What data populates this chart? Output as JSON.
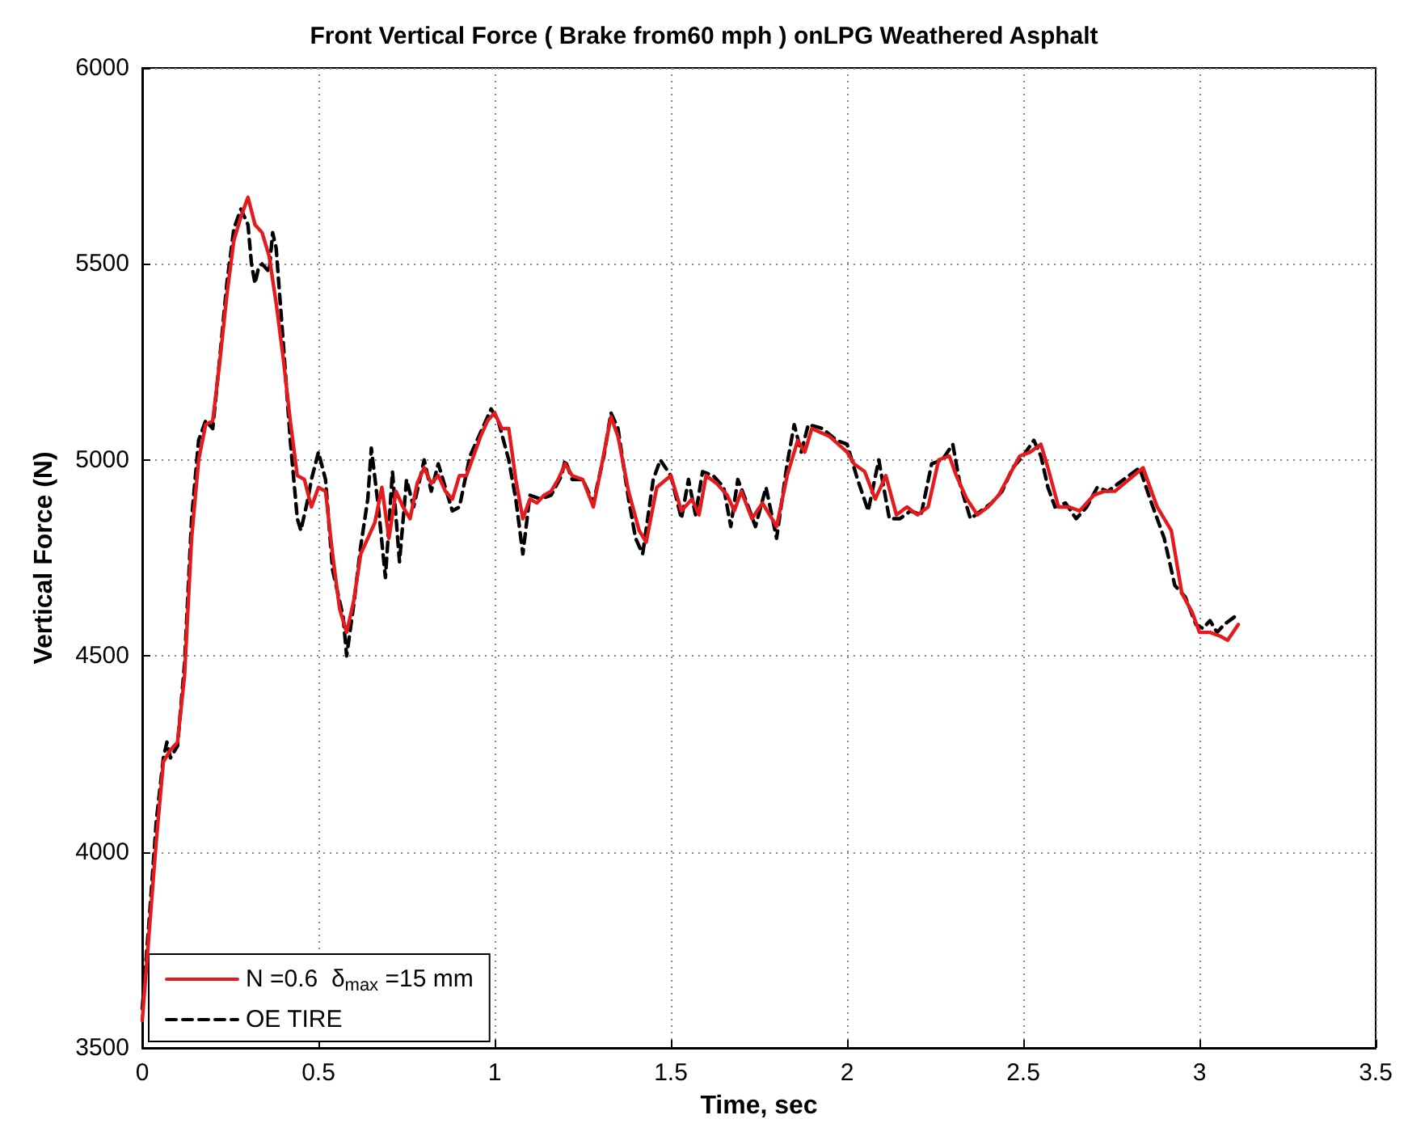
{
  "chart_data": {
    "type": "line",
    "title": "Front Vertical Force ( Brake from60 mph ) onLPG Weathered Asphalt",
    "xlabel": "Time, sec",
    "ylabel": "Vertical Force (N)",
    "xlim": [
      0,
      3.5
    ],
    "xticks": [
      0,
      0.5,
      1,
      1.5,
      2,
      2.5,
      3,
      3.5
    ],
    "ylim": [
      3500,
      6000
    ],
    "yticks": [
      3500,
      4000,
      4500,
      5000,
      5500,
      6000
    ],
    "grid": true,
    "legend": "bottom left",
    "marker": "none",
    "series": [
      {
        "name": "N =0.6  δ$_{max}$ =15 mm",
        "color": "#e41a1c",
        "line_style": "solid",
        "x": [
          0,
          0.02,
          0.04,
          0.06,
          0.08,
          0.1,
          0.12,
          0.14,
          0.16,
          0.18,
          0.2,
          0.22,
          0.24,
          0.26,
          0.28,
          0.3,
          0.32,
          0.34,
          0.36,
          0.38,
          0.4,
          0.42,
          0.44,
          0.46,
          0.48,
          0.5,
          0.52,
          0.54,
          0.56,
          0.58,
          0.6,
          0.62,
          0.64,
          0.66,
          0.68,
          0.7,
          0.72,
          0.74,
          0.76,
          0.78,
          0.8,
          0.82,
          0.84,
          0.86,
          0.88,
          0.9,
          0.92,
          0.94,
          0.96,
          0.98,
          1.0,
          1.02,
          1.04,
          1.06,
          1.08,
          1.1,
          1.12,
          1.14,
          1.16,
          1.18,
          1.2,
          1.22,
          1.25,
          1.28,
          1.3,
          1.33,
          1.35,
          1.38,
          1.41,
          1.43,
          1.46,
          1.5,
          1.53,
          1.56,
          1.58,
          1.6,
          1.63,
          1.66,
          1.68,
          1.7,
          1.73,
          1.76,
          1.8,
          1.83,
          1.86,
          1.88,
          1.9,
          1.95,
          2.0,
          2.02,
          2.05,
          2.08,
          2.11,
          2.14,
          2.17,
          2.2,
          2.23,
          2.26,
          2.29,
          2.31,
          2.34,
          2.37,
          2.4,
          2.43,
          2.46,
          2.49,
          2.52,
          2.55,
          2.57,
          2.6,
          2.63,
          2.66,
          2.7,
          2.73,
          2.76,
          2.8,
          2.84,
          2.88,
          2.92,
          2.95,
          2.98,
          3.0,
          3.03,
          3.06,
          3.08,
          3.11
        ],
        "values": [
          3570,
          3800,
          4030,
          4230,
          4260,
          4280,
          4450,
          4800,
          5000,
          5090,
          5100,
          5250,
          5420,
          5560,
          5620,
          5670,
          5600,
          5580,
          5520,
          5400,
          5260,
          5100,
          4960,
          4950,
          4880,
          4930,
          4920,
          4760,
          4620,
          4560,
          4640,
          4760,
          4800,
          4840,
          4930,
          4800,
          4920,
          4880,
          4850,
          4940,
          4980,
          4940,
          4960,
          4920,
          4900,
          4960,
          4960,
          5010,
          5060,
          5100,
          5120,
          5080,
          5080,
          4950,
          4850,
          4900,
          4890,
          4910,
          4920,
          4950,
          4990,
          4960,
          4950,
          4880,
          4970,
          5110,
          5060,
          4920,
          4820,
          4790,
          4930,
          4960,
          4870,
          4900,
          4860,
          4960,
          4940,
          4910,
          4870,
          4920,
          4850,
          4890,
          4830,
          4960,
          5050,
          5020,
          5080,
          5060,
          5020,
          4990,
          4970,
          4900,
          4960,
          4860,
          4880,
          4860,
          4880,
          5000,
          5010,
          4960,
          4900,
          4860,
          4880,
          4910,
          4960,
          5010,
          5020,
          5040,
          4980,
          4880,
          4880,
          4870,
          4910,
          4920,
          4920,
          4950,
          4980,
          4880,
          4820,
          4660,
          4610,
          4560,
          4560,
          4550,
          4540,
          4580
        ]
      },
      {
        "name": "OE TIRE",
        "color": "#000000",
        "line_style": "dashed",
        "x": [
          0,
          0.02,
          0.04,
          0.06,
          0.07,
          0.08,
          0.1,
          0.12,
          0.14,
          0.16,
          0.18,
          0.2,
          0.22,
          0.24,
          0.26,
          0.28,
          0.3,
          0.31,
          0.32,
          0.33,
          0.34,
          0.36,
          0.37,
          0.38,
          0.4,
          0.42,
          0.44,
          0.45,
          0.47,
          0.48,
          0.5,
          0.52,
          0.54,
          0.57,
          0.58,
          0.6,
          0.62,
          0.64,
          0.65,
          0.67,
          0.69,
          0.71,
          0.73,
          0.75,
          0.77,
          0.8,
          0.82,
          0.84,
          0.86,
          0.88,
          0.9,
          0.93,
          0.96,
          0.99,
          1.01,
          1.04,
          1.06,
          1.08,
          1.1,
          1.13,
          1.16,
          1.19,
          1.2,
          1.22,
          1.25,
          1.28,
          1.31,
          1.33,
          1.35,
          1.38,
          1.4,
          1.42,
          1.45,
          1.47,
          1.5,
          1.53,
          1.55,
          1.57,
          1.59,
          1.62,
          1.65,
          1.67,
          1.69,
          1.72,
          1.74,
          1.77,
          1.8,
          1.83,
          1.85,
          1.87,
          1.89,
          1.93,
          1.97,
          2.0,
          2.03,
          2.06,
          2.09,
          2.12,
          2.15,
          2.18,
          2.21,
          2.24,
          2.27,
          2.3,
          2.32,
          2.35,
          2.38,
          2.41,
          2.44,
          2.47,
          2.5,
          2.53,
          2.55,
          2.57,
          2.59,
          2.62,
          2.65,
          2.68,
          2.71,
          2.74,
          2.77,
          2.8,
          2.83,
          2.86,
          2.9,
          2.93,
          2.96,
          2.99,
          3.01,
          3.03,
          3.05,
          3.07,
          3.1
        ],
        "values": [
          3600,
          3830,
          4080,
          4240,
          4280,
          4240,
          4270,
          4480,
          4850,
          5050,
          5100,
          5080,
          5260,
          5450,
          5590,
          5640,
          5600,
          5500,
          5450,
          5490,
          5500,
          5480,
          5580,
          5540,
          5300,
          5050,
          4850,
          4820,
          4900,
          4950,
          5020,
          4950,
          4720,
          4600,
          4500,
          4630,
          4780,
          4900,
          5030,
          4880,
          4700,
          4970,
          4740,
          4950,
          4880,
          5000,
          4920,
          4990,
          4930,
          4870,
          4880,
          5010,
          5070,
          5130,
          5100,
          5000,
          4900,
          4760,
          4910,
          4900,
          4910,
          4960,
          5000,
          4950,
          4950,
          4890,
          5010,
          5120,
          5080,
          4900,
          4800,
          4760,
          4950,
          5000,
          4960,
          4850,
          4950,
          4860,
          4970,
          4960,
          4930,
          4830,
          4950,
          4880,
          4830,
          4930,
          4800,
          4990,
          5090,
          5020,
          5090,
          5080,
          5050,
          5040,
          4950,
          4870,
          5000,
          4850,
          4850,
          4870,
          4860,
          4990,
          5000,
          5040,
          4940,
          4850,
          4870,
          4890,
          4920,
          4980,
          5010,
          5050,
          5010,
          4930,
          4880,
          4890,
          4850,
          4880,
          4930,
          4920,
          4940,
          4960,
          4980,
          4900,
          4800,
          4680,
          4650,
          4580,
          4570,
          4590,
          4560,
          4580,
          4600
        ]
      }
    ]
  }
}
